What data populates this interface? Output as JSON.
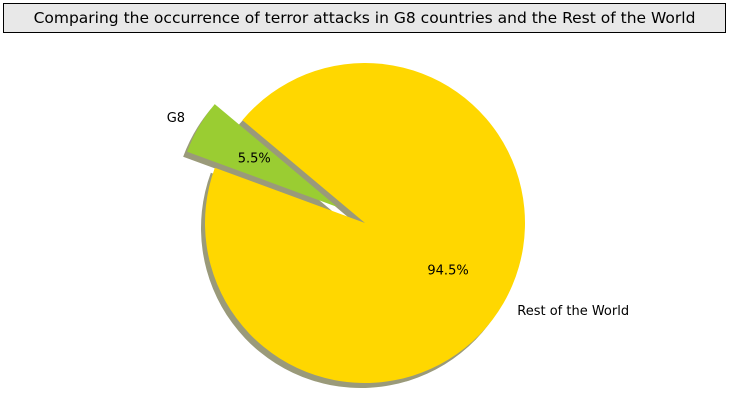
{
  "chart_data": {
    "type": "pie",
    "title": "Comparing the occurrence of terror attacks in G8 countries and the Rest of the World",
    "slices": [
      {
        "label": "G8",
        "value": 5.5,
        "pct_label": "5.5%",
        "color": "#9acd32",
        "exploded": true
      },
      {
        "label": "Rest of the World",
        "value": 94.5,
        "pct_label": "94.5%",
        "color": "#ffd700",
        "exploded": false
      }
    ],
    "shadow": true,
    "shadow_color": "#9a9a7a",
    "start_angle_deg": 140,
    "legend": "none"
  }
}
